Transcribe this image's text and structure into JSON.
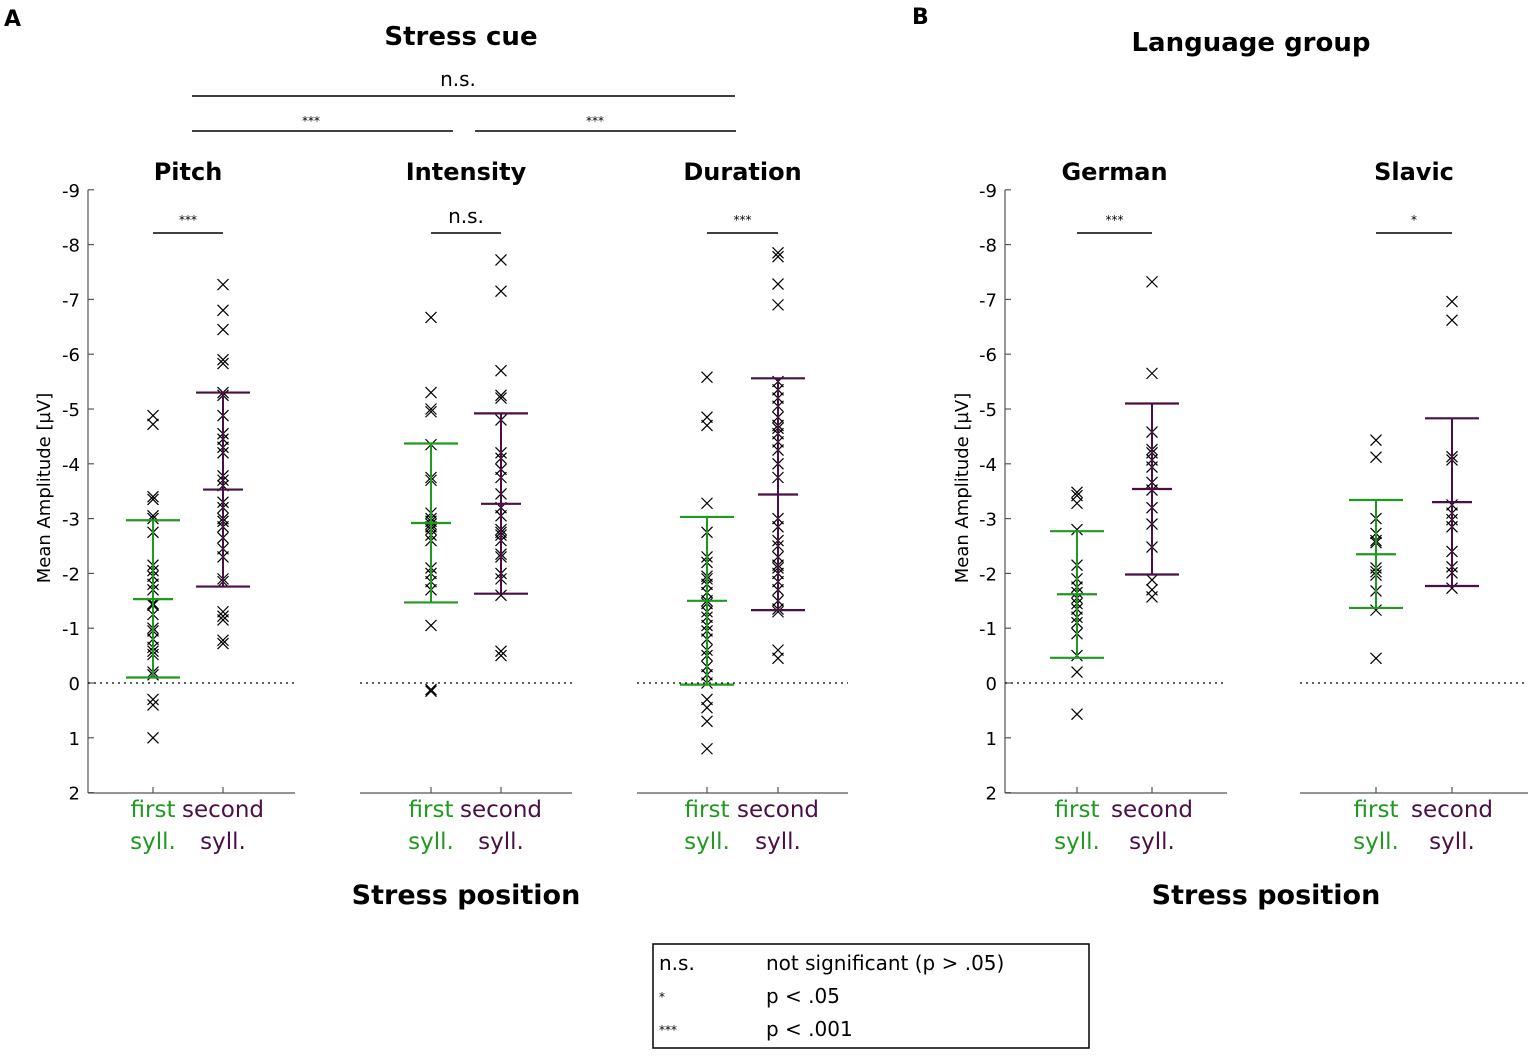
{
  "colors": {
    "first": "#1f9a1f",
    "second": "#4a0f45",
    "points": "#000000"
  },
  "chart_data": [
    {
      "type": "scatter",
      "panel_label": "A",
      "title": "Stress cue",
      "xlabel": "Stress position",
      "ylabel": "Mean Amplitude [µV]",
      "ylim": [
        -9,
        2
      ],
      "y_reversed": true,
      "yticks": [
        "-9",
        "-8",
        "-7",
        "-6",
        "-5",
        "-4",
        "-3",
        "-2",
        "-1",
        "0",
        "1",
        "2"
      ],
      "categories": [
        [
          "first",
          "syll."
        ],
        [
          "second",
          "syll."
        ]
      ],
      "between_comparisons": [
        {
          "pair": [
            "Pitch",
            "Duration"
          ],
          "label": "n.s."
        },
        {
          "pair": [
            "Pitch",
            "Intensity"
          ],
          "label": "***"
        },
        {
          "pair": [
            "Intensity",
            "Duration"
          ],
          "label": "***"
        }
      ],
      "subplots": [
        {
          "name": "Pitch",
          "sig": "***",
          "series": [
            {
              "name": "first syll.",
              "mean": -1.53,
              "sd_upper": -2.97,
              "sd_lower": -0.1,
              "values": [
                -4.88,
                -4.72,
                -3.4,
                -3.35,
                -3.05,
                -3.0,
                -2.75,
                -2.15,
                -2.05,
                -1.95,
                -1.8,
                -1.7,
                -1.45,
                -1.42,
                -1.25,
                -1.0,
                -0.95,
                -0.8,
                -0.65,
                -0.58,
                -0.52,
                -0.2,
                -0.15,
                0.3,
                0.4,
                1.0
              ]
            },
            {
              "name": "second syll.",
              "mean": -3.53,
              "sd_upper": -5.3,
              "sd_lower": -1.76,
              "values": [
                -7.27,
                -6.8,
                -6.45,
                -5.9,
                -5.83,
                -5.3,
                -5.25,
                -4.88,
                -4.55,
                -4.45,
                -4.3,
                -4.2,
                -3.78,
                -3.7,
                -3.6,
                -3.3,
                -3.2,
                -3.0,
                -2.95,
                -2.85,
                -2.65,
                -2.45,
                -2.3,
                -1.9,
                -1.85,
                -1.3,
                -1.22,
                -1.15,
                -0.78,
                -0.72
              ]
            }
          ]
        },
        {
          "name": "Intensity",
          "sig": "n.s.",
          "series": [
            {
              "name": "first syll.",
              "mean": -2.92,
              "sd_upper": -4.37,
              "sd_lower": -1.47,
              "values": [
                -6.67,
                -5.3,
                -5.0,
                -4.95,
                -4.35,
                -3.75,
                -3.7,
                -3.1,
                -3.0,
                -2.95,
                -2.9,
                -2.85,
                -2.8,
                -2.7,
                -2.6,
                -2.1,
                -2.0,
                -1.85,
                -1.7,
                -1.05,
                0.12,
                0.15
              ]
            },
            {
              "name": "second syll.",
              "mean": -3.27,
              "sd_upper": -4.92,
              "sd_lower": -1.63,
              "values": [
                -7.72,
                -7.15,
                -5.7,
                -5.25,
                -5.2,
                -4.8,
                -4.2,
                -4.1,
                -3.9,
                -3.75,
                -3.45,
                -3.2,
                -3.05,
                -2.8,
                -2.75,
                -2.7,
                -2.6,
                -2.35,
                -2.3,
                -2.0,
                -1.9,
                -1.6,
                -0.58,
                -0.5
              ]
            }
          ]
        },
        {
          "name": "Duration",
          "sig": "***",
          "series": [
            {
              "name": "first syll.",
              "mean": -1.5,
              "sd_upper": -3.03,
              "sd_lower": 0.03,
              "values": [
                -5.58,
                -4.85,
                -4.7,
                -3.28,
                -2.75,
                -2.3,
                -2.2,
                -1.95,
                -1.9,
                -1.8,
                -1.65,
                -1.5,
                -1.45,
                -1.3,
                -1.2,
                -1.05,
                -0.95,
                -0.8,
                -0.6,
                -0.5,
                -0.3,
                -0.15,
                0.0,
                0.3,
                0.45,
                0.7,
                1.2
              ]
            },
            {
              "name": "second syll.",
              "mean": -3.44,
              "sd_upper": -5.56,
              "sd_lower": -1.33,
              "values": [
                -7.85,
                -7.78,
                -7.28,
                -6.9,
                -5.5,
                -5.35,
                -5.2,
                -5.05,
                -4.85,
                -4.7,
                -4.65,
                -4.55,
                -4.4,
                -4.25,
                -4.0,
                -3.75,
                -3.0,
                -2.85,
                -2.6,
                -2.5,
                -2.3,
                -2.15,
                -2.1,
                -2.0,
                -1.85,
                -1.7,
                -1.5,
                -1.35,
                -1.3,
                -0.6,
                -0.45
              ]
            }
          ]
        }
      ]
    },
    {
      "type": "scatter",
      "panel_label": "B",
      "title": "Language group",
      "xlabel": "Stress position",
      "ylabel": "Mean Amplitude [µV]",
      "ylim": [
        -9,
        2
      ],
      "y_reversed": true,
      "yticks": [
        "-9",
        "-8",
        "-7",
        "-6",
        "-5",
        "-4",
        "-3",
        "-2",
        "-1",
        "0",
        "1",
        "2"
      ],
      "categories": [
        [
          "first",
          "syll."
        ],
        [
          "second",
          "syll."
        ]
      ],
      "subplots": [
        {
          "name": "German",
          "sig": "***",
          "series": [
            {
              "name": "first syll.",
              "mean": -1.62,
              "sd_upper": -2.77,
              "sd_lower": -0.46,
              "values": [
                -3.48,
                -3.42,
                -3.28,
                -2.8,
                -2.15,
                -1.9,
                -1.75,
                -1.65,
                -1.55,
                -1.45,
                -1.35,
                -1.2,
                -1.1,
                -0.9,
                -0.5,
                -0.2,
                0.57
              ]
            },
            {
              "name": "second syll.",
              "mean": -3.54,
              "sd_upper": -5.1,
              "sd_lower": -1.98,
              "values": [
                -7.32,
                -5.65,
                -4.58,
                -4.26,
                -4.2,
                -4.07,
                -3.94,
                -3.66,
                -3.52,
                -3.2,
                -2.9,
                -2.48,
                -1.88,
                -1.7,
                -1.57
              ]
            }
          ]
        },
        {
          "name": "Slavic",
          "sig": "*",
          "series": [
            {
              "name": "first syll.",
              "mean": -2.35,
              "sd_upper": -3.34,
              "sd_lower": -1.37,
              "values": [
                -4.43,
                -4.12,
                -3.0,
                -2.73,
                -2.6,
                -2.56,
                -2.1,
                -2.03,
                -1.97,
                -1.68,
                -1.33,
                -0.45
              ]
            },
            {
              "name": "second syll.",
              "mean": -3.3,
              "sd_upper": -4.83,
              "sd_lower": -1.77,
              "values": [
                -6.96,
                -6.62,
                -4.13,
                -4.07,
                -3.25,
                -3.1,
                -2.98,
                -2.85,
                -2.4,
                -2.12,
                -2.01,
                -1.73
              ]
            }
          ]
        }
      ]
    }
  ],
  "legend": {
    "rows": [
      {
        "symbol": "n.s.",
        "meaning": "not significant (p > .05)"
      },
      {
        "symbol": "*",
        "meaning": "p < .05"
      },
      {
        "symbol": "***",
        "meaning": "p < .001"
      }
    ]
  }
}
